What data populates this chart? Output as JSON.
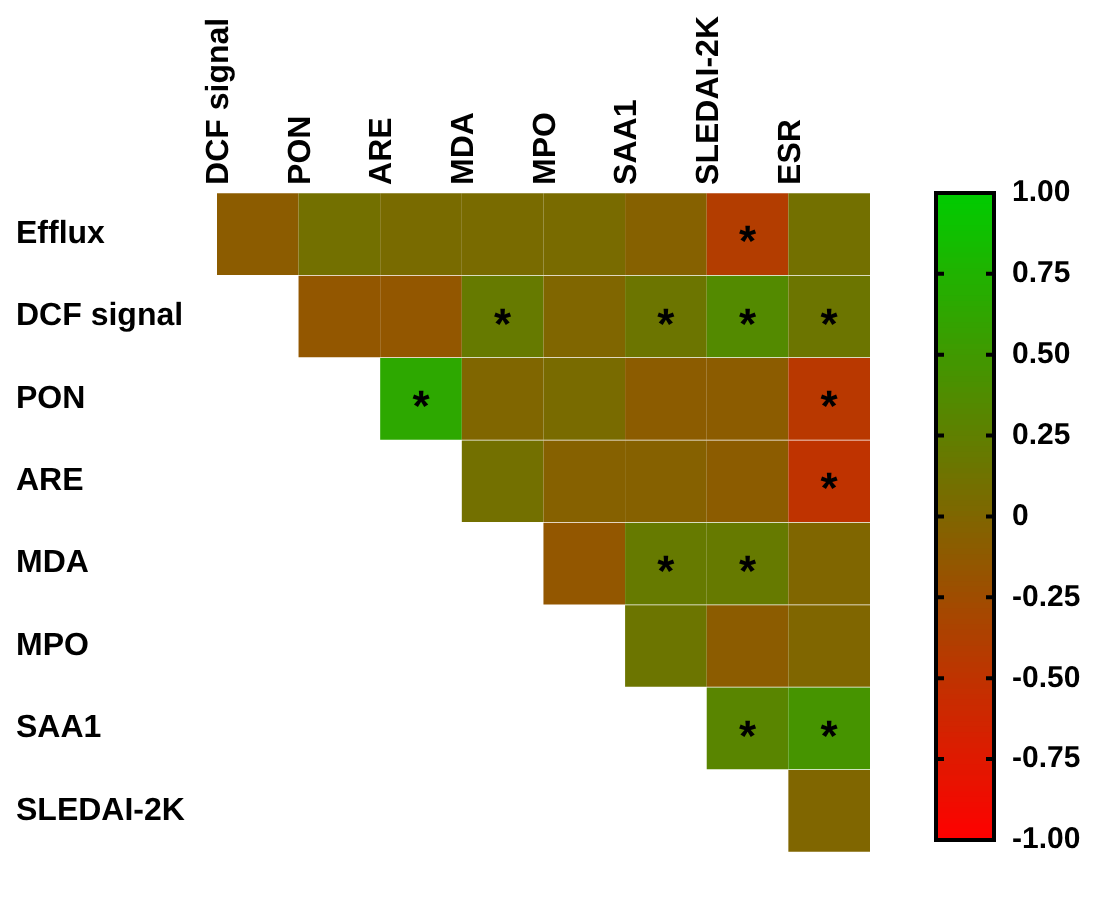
{
  "chart_data": {
    "type": "heatmap",
    "categories": [
      "DCF signal",
      "PON",
      "ARE",
      "MDA",
      "MPO",
      "SAA1",
      "SLEDAI-2K",
      "ESR"
    ],
    "y_categories": [
      "Efflux",
      "DCF signal",
      "PON",
      "ARE",
      "MDA",
      "MPO",
      "SAA1",
      "SLEDAI-2K"
    ],
    "cells": [
      [
        -0.1,
        0.1,
        0.05,
        0.05,
        0.05,
        -0.05,
        -0.4,
        0.1
      ],
      [
        null,
        -0.15,
        -0.15,
        0.2,
        0.0,
        0.15,
        0.35,
        0.15
      ],
      [
        null,
        null,
        0.65,
        0.0,
        0.05,
        -0.1,
        -0.1,
        -0.45
      ],
      [
        null,
        null,
        null,
        0.1,
        -0.05,
        -0.05,
        -0.1,
        -0.5
      ],
      [
        null,
        null,
        null,
        null,
        -0.15,
        0.2,
        0.2,
        0.0
      ],
      [
        null,
        null,
        null,
        null,
        null,
        0.15,
        -0.1,
        0.0
      ],
      [
        null,
        null,
        null,
        null,
        null,
        null,
        0.3,
        0.45
      ],
      [
        null,
        null,
        null,
        null,
        null,
        null,
        null,
        0.0
      ]
    ],
    "cell_labels": [
      [
        null,
        null,
        null,
        null,
        null,
        null,
        "*",
        null
      ],
      [
        null,
        null,
        null,
        "*",
        null,
        "*",
        "*",
        "*"
      ],
      [
        null,
        null,
        "*",
        null,
        null,
        null,
        null,
        "*"
      ],
      [
        null,
        null,
        null,
        null,
        null,
        null,
        null,
        "*"
      ],
      [
        null,
        null,
        null,
        null,
        null,
        "*",
        "*",
        null
      ],
      [
        null,
        null,
        null,
        null,
        null,
        null,
        null,
        null
      ],
      [
        null,
        null,
        null,
        null,
        null,
        null,
        "*",
        "*"
      ],
      [
        null,
        null,
        null,
        null,
        null,
        null,
        null,
        null
      ]
    ],
    "clim": [
      -1,
      1
    ],
    "cticks": [
      {
        "value": 1,
        "label": "1.00"
      },
      {
        "value": 0.75,
        "label": "0.75"
      },
      {
        "value": 0.5,
        "label": "0.50"
      },
      {
        "value": 0.25,
        "label": "0.25"
      },
      {
        "value": 0,
        "label": "0"
      },
      {
        "value": -0.25,
        "label": "-0.25"
      },
      {
        "value": -0.5,
        "label": "-0.50"
      },
      {
        "value": -0.75,
        "label": "-0.75"
      },
      {
        "value": -1,
        "label": "-1.00"
      }
    ]
  }
}
